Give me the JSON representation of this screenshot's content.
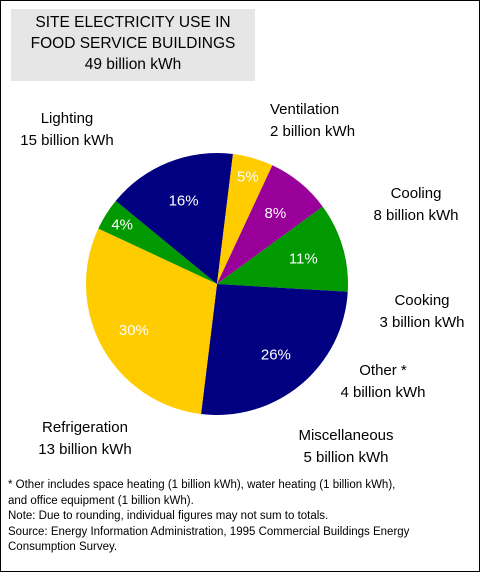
{
  "chart_data": {
    "type": "pie",
    "title": [
      "SITE ELECTRICITY USE IN",
      "FOOD SERVICE BUILDINGS",
      "49 billion kWh"
    ],
    "unit": "billion kWh",
    "slices": [
      {
        "name": "Ventilation",
        "value": 2,
        "percent": 4,
        "pct_label": "4%",
        "value_label": "2 billion kWh",
        "color": "#009900"
      },
      {
        "name": "Cooling",
        "value": 8,
        "percent": 16,
        "pct_label": "16%",
        "value_label": "8 billion kWh",
        "color": "#000080"
      },
      {
        "name": "Cooking",
        "value": 3,
        "percent": 5,
        "pct_label": "5%",
        "value_label": "3 billion kWh",
        "color": "#ffcc00"
      },
      {
        "name": "Other *",
        "value": 4,
        "percent": 8,
        "pct_label": "8%",
        "value_label": "4 billion kWh",
        "color": "#990099"
      },
      {
        "name": "Miscellaneous",
        "value": 5,
        "percent": 11,
        "pct_label": "11%",
        "value_label": "5 billion kWh",
        "color": "#009900"
      },
      {
        "name": "Refrigeration",
        "value": 13,
        "percent": 26,
        "pct_label": "26%",
        "value_label": "13 billion kWh",
        "color": "#000080"
      },
      {
        "name": "Lighting",
        "value": 15,
        "percent": 30,
        "pct_label": "30%",
        "value_label": "15 billion kWh",
        "color": "#ffcc00"
      }
    ]
  },
  "footnotes": [
    "* Other includes space heating (1 billion kWh), water heating (1 billion kWh),",
    "and office equipment (1 billion kWh).",
    "Note:  Due to rounding, individual figures may not sum to totals.",
    "Source:  Energy Information Administration, 1995 Commercial Buildings Energy",
    "Consumption Survey."
  ]
}
